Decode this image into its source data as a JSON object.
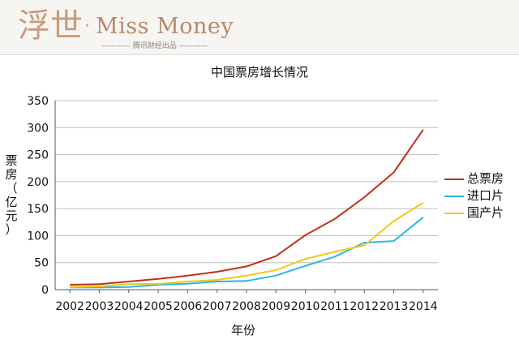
{
  "banner": {
    "logo_glyph": "浮世",
    "logo_dot": "·",
    "logo_text": "Miss Money",
    "logo_sub": "———— 腾讯财经出品 ————"
  },
  "chart_data": {
    "type": "line",
    "title": "中国票房增长情况",
    "xlabel": "年份",
    "ylabel": "票房（亿元）",
    "categories": [
      "2002",
      "2003",
      "2004",
      "2005",
      "2006",
      "2007",
      "2008",
      "2009",
      "2010",
      "2011",
      "2012",
      "2013",
      "2014"
    ],
    "ylim": [
      0,
      350
    ],
    "yticks": [
      0,
      50,
      100,
      150,
      200,
      250,
      300,
      350
    ],
    "grid": "horizontal",
    "legend_position": "right",
    "series": [
      {
        "name": "总票房",
        "color": "#c0311a",
        "values": [
          9,
          10,
          15,
          20,
          26,
          33,
          43,
          62,
          101,
          131,
          171,
          217,
          296
        ]
      },
      {
        "name": "进口片",
        "color": "#2ab6e8",
        "values": [
          4,
          4,
          5,
          9,
          11,
          15,
          16,
          26,
          44,
          61,
          87,
          90,
          134
        ]
      },
      {
        "name": "国产片",
        "color": "#f2c81a",
        "values": [
          5,
          6,
          10,
          11,
          15,
          18,
          26,
          36,
          57,
          70,
          82,
          127,
          161
        ]
      }
    ]
  }
}
